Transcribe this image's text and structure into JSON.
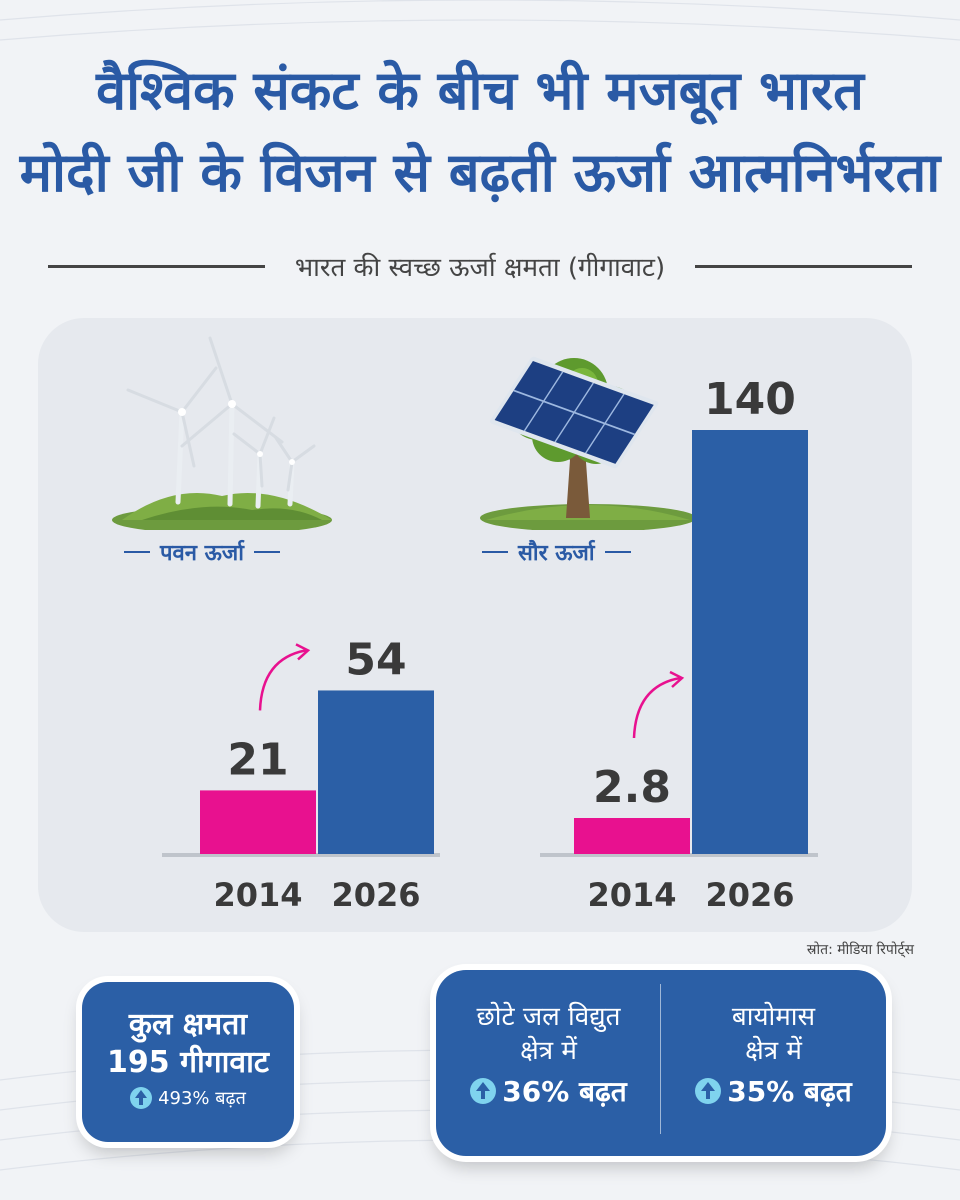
{
  "header": {
    "line1": "वैश्विक संकट के बीच भी मजबूत भारत",
    "line2": "मोदी जी के विजन से बढ़ती ऊर्जा आत्मनिर्भरता"
  },
  "chart_data": {
    "type": "bar",
    "title": "भारत की स्वच्छ ऊर्जा क्षमता (गीगावाट)",
    "categories": [
      "पवन ऊर्जा",
      "सौर ऊर्जा"
    ],
    "x": [
      "2014",
      "2026"
    ],
    "groups": [
      {
        "label": "पवन ऊर्जा",
        "values": [
          21,
          54
        ],
        "value_labels": [
          "21",
          "54"
        ]
      },
      {
        "label": "सौर ऊर्जा",
        "values": [
          2.8,
          140
        ],
        "value_labels": [
          "2.8",
          "140"
        ]
      }
    ],
    "series_colors": [
      "#e8118f",
      "#2b5fa6"
    ],
    "ylim": [
      0,
      140
    ],
    "grid": false,
    "legend": "none"
  },
  "source": "स्रोत: मीडिया रिपोर्ट्स",
  "total": {
    "line1": "कुल क्षमता",
    "line2": "195 गीगावाट",
    "growth": "493% बढ़त"
  },
  "other": {
    "hydro": {
      "line1": "छोटे जल विद्युत",
      "line2": "क्षेत्र में",
      "growth": "36% बढ़त"
    },
    "biomass": {
      "line1": "बायोमास",
      "line2": "क्षेत्र में",
      "growth": "35% बढ़त"
    }
  },
  "icons": {
    "growth": "arrow-up-circle-icon",
    "wind": "wind-turbine-icon",
    "solar": "solar-panel-tree-icon"
  }
}
